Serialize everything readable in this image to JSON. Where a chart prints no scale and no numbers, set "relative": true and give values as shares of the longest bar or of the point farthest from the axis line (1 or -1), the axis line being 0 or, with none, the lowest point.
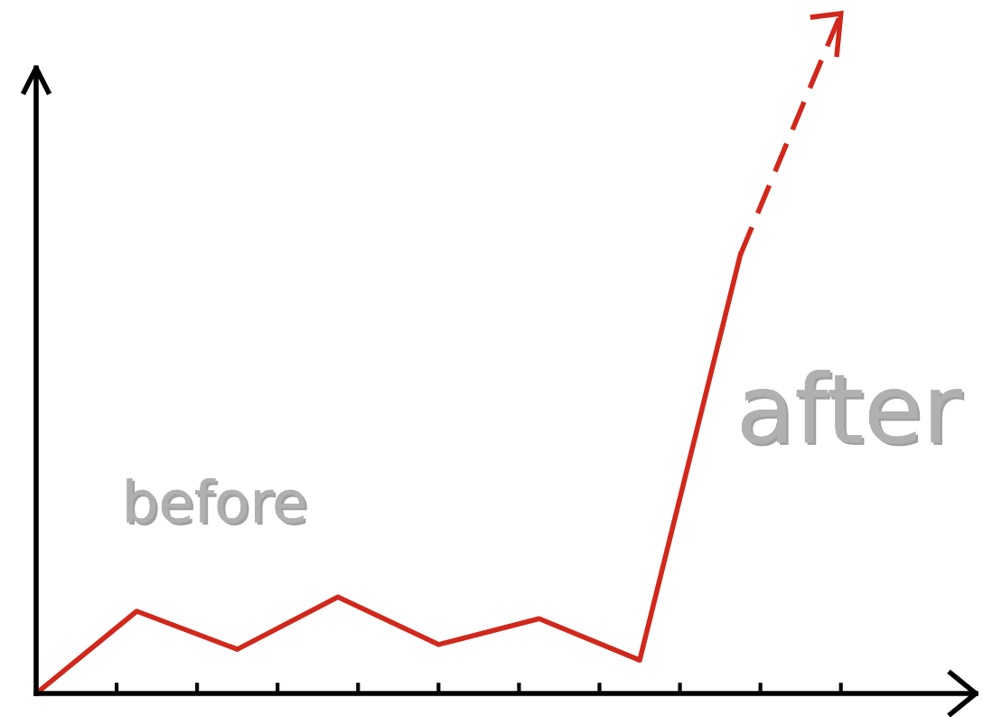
{
  "chart_data": {
    "type": "line",
    "relative": true,
    "categories": [
      null,
      null,
      null,
      null,
      null,
      null,
      null,
      null,
      null
    ],
    "series": [
      {
        "color": "#d0281c",
        "line_style": "solid",
        "values": [
          0,
          0.121,
          0.065,
          0.142,
          0.072,
          0.11,
          0.049,
          0.645,
          null
        ]
      },
      {
        "color": "#d0281c",
        "line_style": "dashed",
        "values": [
          null,
          null,
          null,
          null,
          null,
          null,
          null,
          0.645,
          1.0
        ]
      }
    ],
    "annotations": [
      "before",
      "after"
    ],
    "grid": false,
    "legend": false,
    "marker": "none"
  }
}
